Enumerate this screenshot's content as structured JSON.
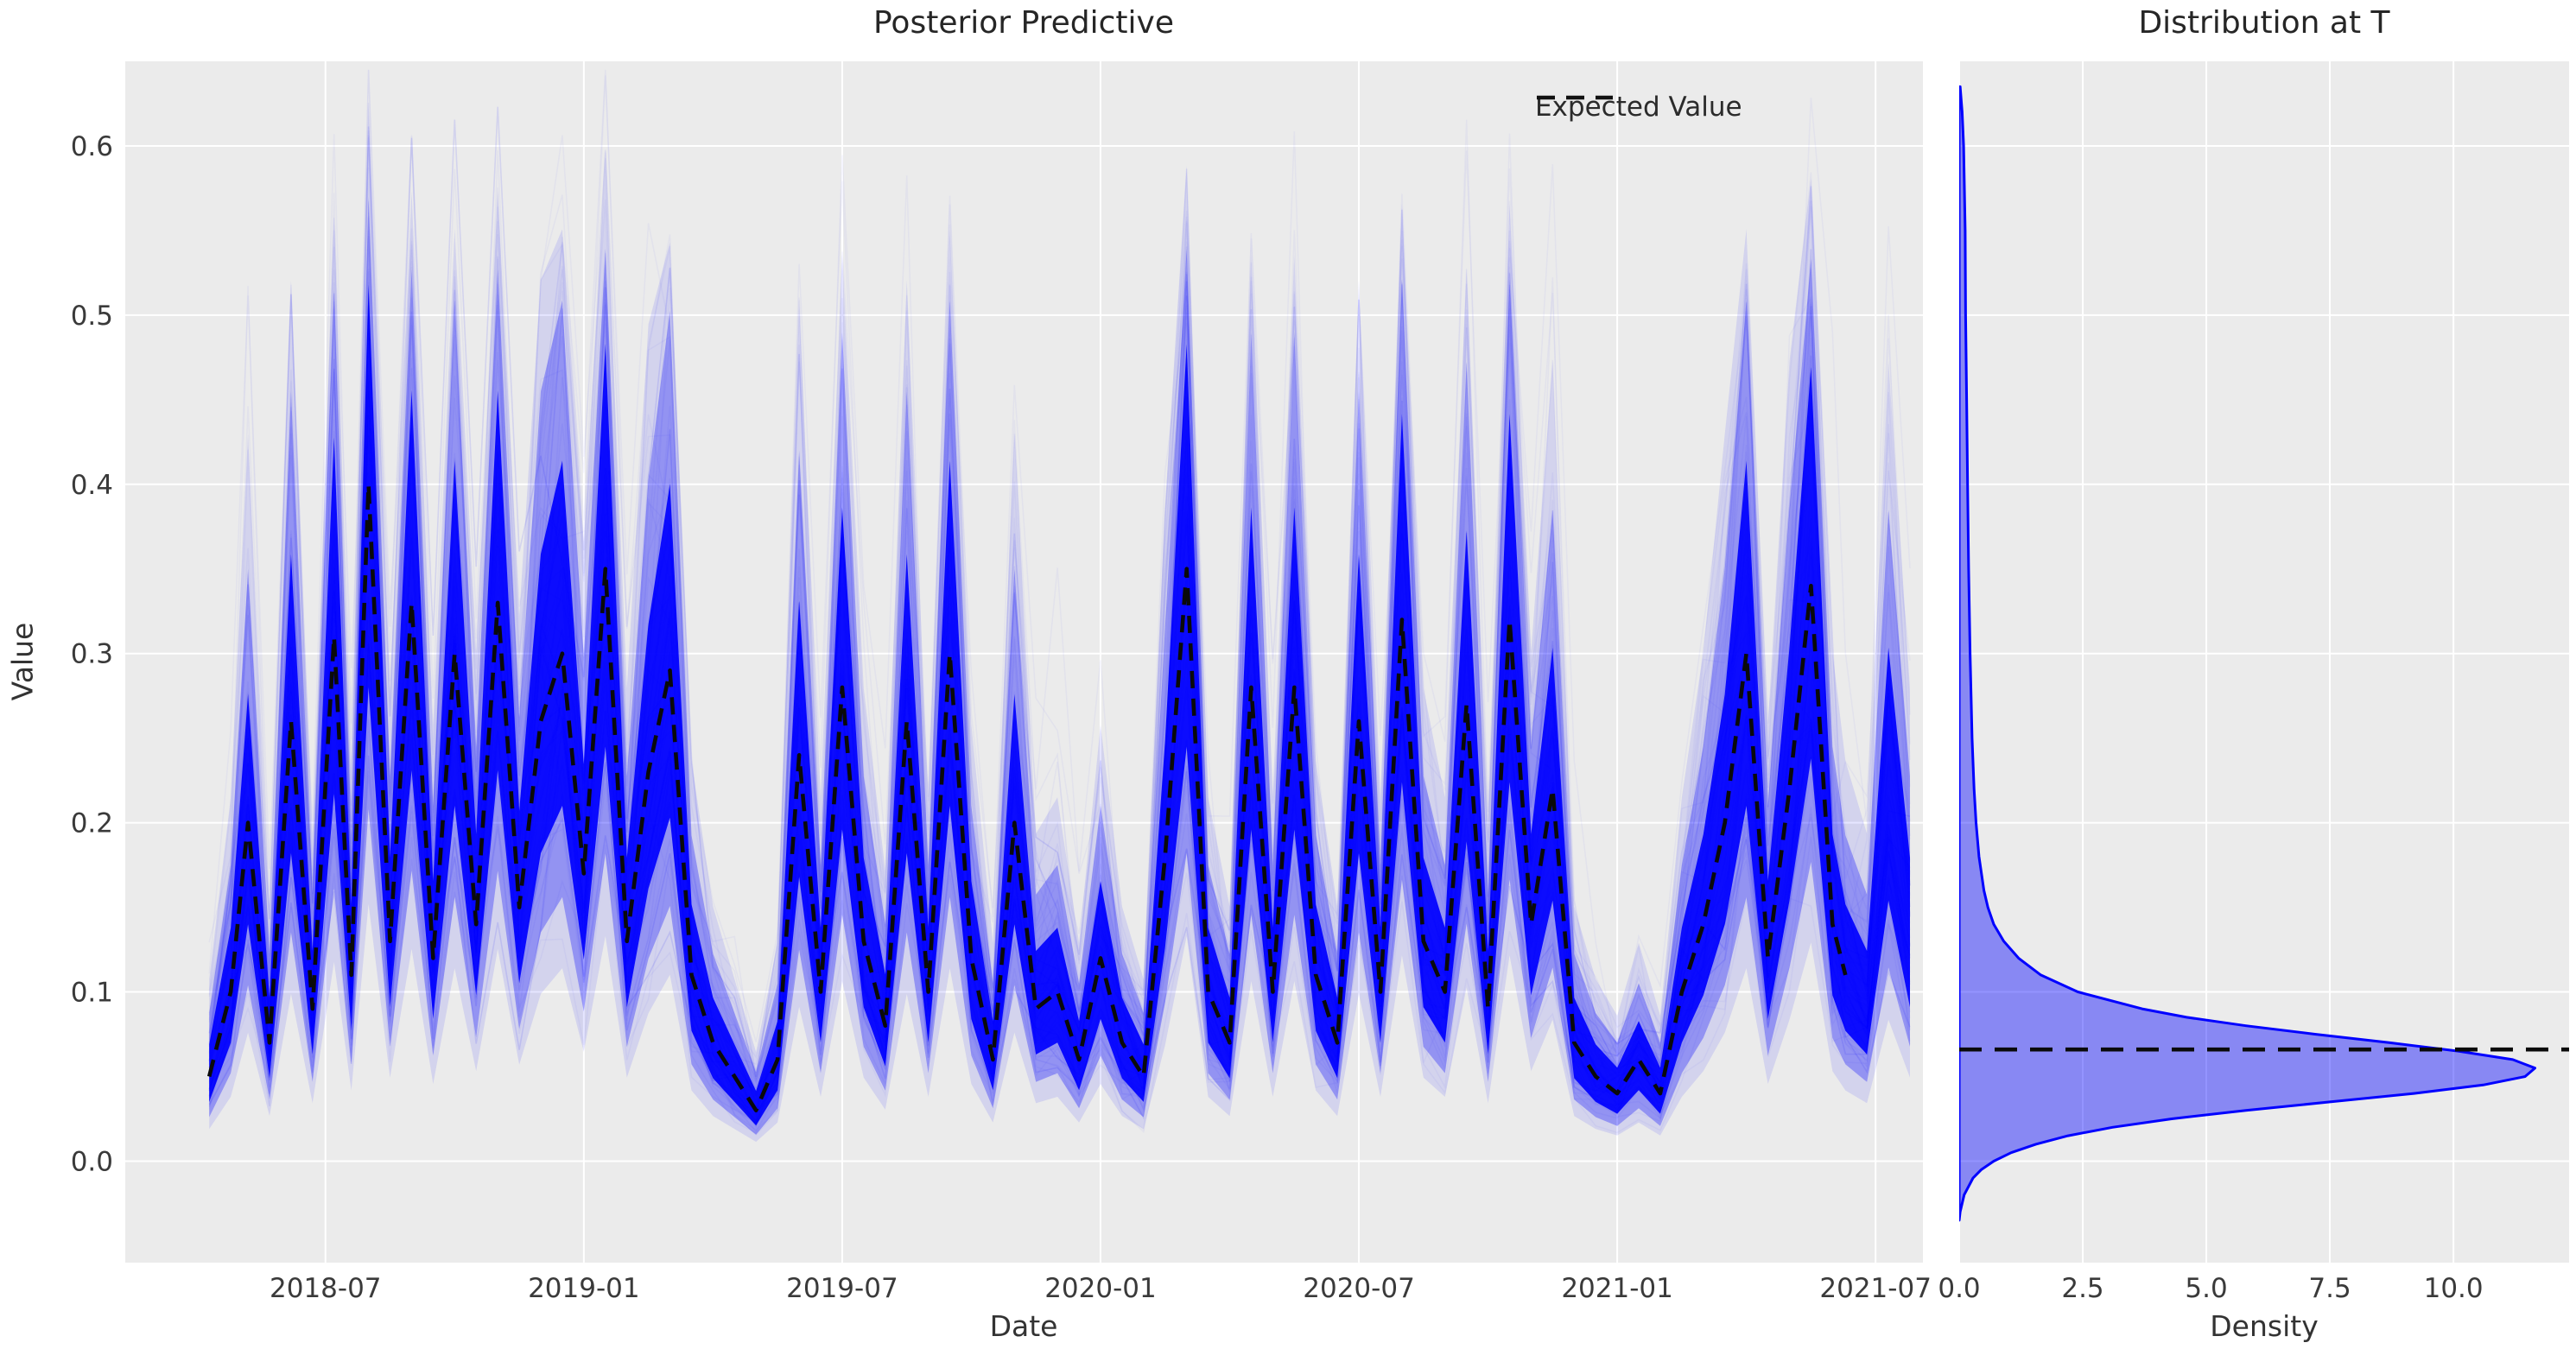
{
  "figure": {
    "background": "#ffffff",
    "panel_background": "#ebebeb",
    "grid_color": "#ffffff",
    "tick_color": "#3a3a3a",
    "title_color": "#262626"
  },
  "chart_data": [
    {
      "id": "posterior_predictive",
      "type": "line",
      "title": "Posterior Predictive",
      "xlabel": "Date",
      "ylabel": "Value",
      "legend": {
        "entries": [
          {
            "label": "Expected Value",
            "style": "dashed",
            "color": "#000000"
          }
        ],
        "frame": false,
        "position": "upper right"
      },
      "grid": true,
      "x_time_unit": "months since 2018-04-01",
      "xlim_months": [
        -1.65,
        40.1
      ],
      "x_ticks": [
        {
          "label": "2018-07",
          "t": 3
        },
        {
          "label": "2019-01",
          "t": 9
        },
        {
          "label": "2019-07",
          "t": 15
        },
        {
          "label": "2020-01",
          "t": 21
        },
        {
          "label": "2020-07",
          "t": 27
        },
        {
          "label": "2021-01",
          "t": 33
        },
        {
          "label": "2021-07",
          "t": 39
        }
      ],
      "ylim": [
        -0.06,
        0.65
      ],
      "y_ticks": [
        {
          "label": "0.0",
          "v": 0.0
        },
        {
          "label": "0.1",
          "v": 0.1
        },
        {
          "label": "0.2",
          "v": 0.2
        },
        {
          "label": "0.3",
          "v": 0.3
        },
        {
          "label": "0.4",
          "v": 0.4
        },
        {
          "label": "0.5",
          "v": 0.5
        },
        {
          "label": "0.6",
          "v": 0.6
        }
      ],
      "sample_color": "#0000ff",
      "expected_color": "#000000",
      "expected_series": {
        "t": [
          0.3,
          0.8,
          1.2,
          1.7,
          2.2,
          2.7,
          3.2,
          3.6,
          4.0,
          4.5,
          5.0,
          5.5,
          6.0,
          6.5,
          7.0,
          7.5,
          8.0,
          8.5,
          9.0,
          9.5,
          10.0,
          10.5,
          11.0,
          11.5,
          12.0,
          12.5,
          13.0,
          13.5,
          14.0,
          14.5,
          15.0,
          15.5,
          16.0,
          16.5,
          17.0,
          17.5,
          18.0,
          18.5,
          19.0,
          19.5,
          20.0,
          20.5,
          21.0,
          21.5,
          22.0,
          22.5,
          23.0,
          23.5,
          24.0,
          24.5,
          25.0,
          25.5,
          26.0,
          26.5,
          27.0,
          27.5,
          28.0,
          28.5,
          29.0,
          29.5,
          30.0,
          30.5,
          31.0,
          31.5,
          32.0,
          32.5,
          33.0,
          33.5,
          34.0,
          34.5,
          35.0,
          35.5,
          36.0,
          36.5,
          37.0,
          37.5,
          38.0,
          38.3
        ],
        "v": [
          0.05,
          0.1,
          0.2,
          0.07,
          0.26,
          0.09,
          0.31,
          0.11,
          0.4,
          0.13,
          0.33,
          0.12,
          0.3,
          0.14,
          0.33,
          0.15,
          0.26,
          0.3,
          0.17,
          0.35,
          0.13,
          0.23,
          0.29,
          0.11,
          0.07,
          0.05,
          0.03,
          0.06,
          0.24,
          0.1,
          0.28,
          0.13,
          0.08,
          0.26,
          0.1,
          0.3,
          0.12,
          0.06,
          0.2,
          0.09,
          0.1,
          0.06,
          0.12,
          0.07,
          0.05,
          0.18,
          0.35,
          0.1,
          0.07,
          0.28,
          0.1,
          0.28,
          0.11,
          0.07,
          0.26,
          0.1,
          0.32,
          0.13,
          0.1,
          0.27,
          0.09,
          0.32,
          0.14,
          0.22,
          0.07,
          0.05,
          0.04,
          0.06,
          0.04,
          0.1,
          0.14,
          0.2,
          0.3,
          0.12,
          0.22,
          0.34,
          0.14,
          0.11
        ]
      },
      "sample_band_tail": {
        "t": [
          38.8,
          39.3,
          39.8
        ],
        "v": [
          0.09,
          0.22,
          0.13
        ]
      },
      "band_multipliers": {
        "core": [
          0.7,
          1.38
        ],
        "mid": [
          0.52,
          1.75
        ],
        "outer": [
          0.38,
          2.15
        ]
      },
      "n_wispy_traces": 58,
      "max_sample_value": 0.62
    },
    {
      "id": "distribution_at_t",
      "type": "area",
      "title": "Distribution at T",
      "xlabel": "Density",
      "grid": true,
      "xlim": [
        0,
        12.34
      ],
      "x_ticks": [
        {
          "label": "0.0",
          "d": 0.0
        },
        {
          "label": "2.5",
          "d": 2.5
        },
        {
          "label": "5.0",
          "d": 5.0
        },
        {
          "label": "7.5",
          "d": 7.5
        },
        {
          "label": "10.0",
          "d": 10.0
        }
      ],
      "ylim": [
        -0.06,
        0.65
      ],
      "expected_value_at_T": 0.066,
      "kde_peak": {
        "value": 0.055,
        "density": 11.65
      },
      "fill_color": "#0000ff",
      "fill_opacity": 0.42,
      "line_color": "#0000ff",
      "dashed_line_color": "#000000",
      "kde": {
        "value": [
          0.635,
          0.62,
          0.6,
          0.55,
          0.5,
          0.45,
          0.4,
          0.35,
          0.3,
          0.25,
          0.22,
          0.2,
          0.18,
          0.16,
          0.15,
          0.14,
          0.13,
          0.12,
          0.11,
          0.1,
          0.09,
          0.085,
          0.08,
          0.075,
          0.07,
          0.065,
          0.06,
          0.055,
          0.05,
          0.045,
          0.04,
          0.035,
          0.03,
          0.025,
          0.02,
          0.015,
          0.01,
          0.005,
          0.0,
          -0.005,
          -0.01,
          -0.02,
          -0.03,
          -0.035
        ],
        "density": [
          0.02,
          0.06,
          0.09,
          0.12,
          0.13,
          0.15,
          0.17,
          0.19,
          0.22,
          0.26,
          0.3,
          0.34,
          0.4,
          0.5,
          0.58,
          0.7,
          0.9,
          1.2,
          1.65,
          2.4,
          3.7,
          4.6,
          5.8,
          7.2,
          8.7,
          10.1,
          11.2,
          11.65,
          11.45,
          10.6,
          9.2,
          7.5,
          5.8,
          4.3,
          3.1,
          2.2,
          1.55,
          1.05,
          0.7,
          0.45,
          0.28,
          0.1,
          0.02,
          0.0
        ]
      }
    }
  ]
}
